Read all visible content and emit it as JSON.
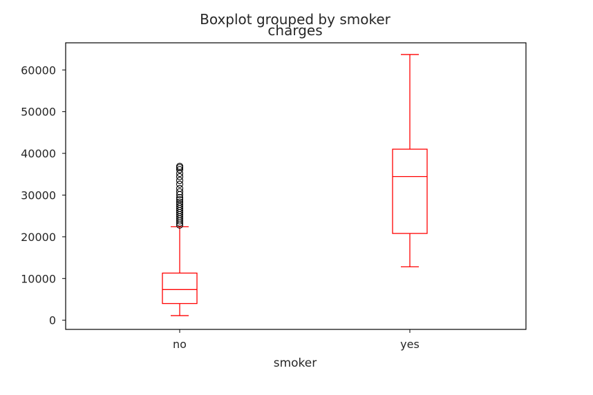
{
  "chart_data": {
    "type": "box",
    "title": "Boxplot grouped by smoker",
    "subtitle": "charges",
    "xlabel": "smoker",
    "ylabel": "",
    "ylim": [
      -2200,
      66500
    ],
    "yticks": [
      0,
      10000,
      20000,
      30000,
      40000,
      50000,
      60000
    ],
    "ytick_labels": [
      "0",
      "10000",
      "20000",
      "30000",
      "40000",
      "50000",
      "60000"
    ],
    "categories": [
      "no",
      "yes"
    ],
    "box_color": "#ff0000",
    "outlier_color": "#000000",
    "grid": false,
    "boxes": [
      {
        "category": "no",
        "whisker_low": 1100,
        "q1": 4000,
        "median": 7350,
        "q3": 11300,
        "whisker_high": 22400,
        "outliers": [
          22800,
          23300,
          23800,
          24300,
          24800,
          25300,
          25800,
          26300,
          26800,
          27300,
          27800,
          28300,
          28900,
          29400,
          30100,
          30800,
          31600,
          32600,
          33500,
          34400,
          35200,
          36100,
          36600,
          36900
        ]
      },
      {
        "category": "yes",
        "whisker_low": 12800,
        "q1": 20800,
        "median": 34450,
        "q3": 41000,
        "whisker_high": 63700,
        "outliers": []
      }
    ]
  }
}
